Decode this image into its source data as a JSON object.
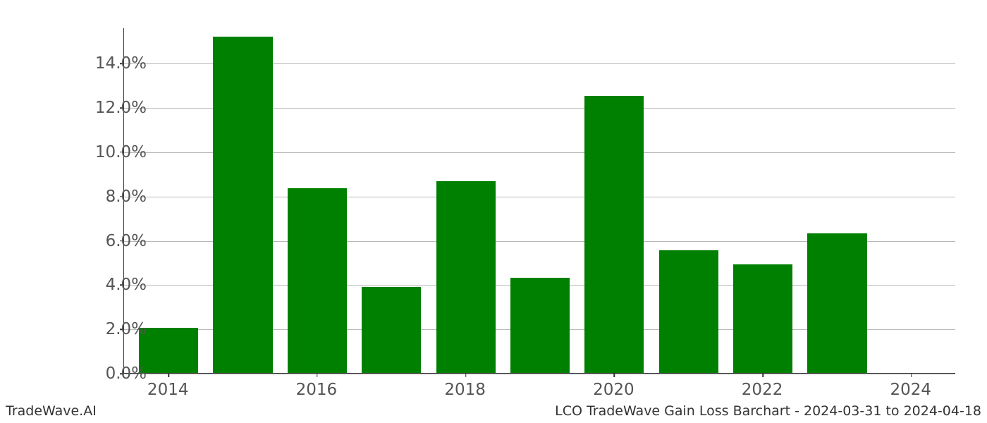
{
  "chart": {
    "type": "bar",
    "categories": [
      2014,
      2015,
      2016,
      2017,
      2018,
      2019,
      2020,
      2021,
      2022,
      2023,
      2024
    ],
    "values": [
      2.05,
      15.2,
      8.35,
      3.9,
      8.65,
      4.3,
      12.5,
      5.55,
      4.9,
      6.3,
      0.0
    ],
    "bar_color": "#008000",
    "ylim": [
      0,
      15.6
    ],
    "ytick_step": 2.0,
    "ytick_start": 0.0,
    "ytick_end": 14.0,
    "ytick_labels": [
      "0.0%",
      "2.0%",
      "4.0%",
      "6.0%",
      "8.0%",
      "10.0%",
      "12.0%",
      "14.0%"
    ],
    "xtick_positions": [
      2014,
      2016,
      2018,
      2020,
      2022,
      2024
    ],
    "xtick_labels": [
      "2014",
      "2016",
      "2018",
      "2020",
      "2022",
      "2024"
    ],
    "bar_width": 0.8,
    "grid_color": "#b8b8b8",
    "axis_color": "#333333",
    "background_color": "#ffffff",
    "tick_label_color": "#555555",
    "tick_label_fontsize": 23,
    "footer_fontsize": 19,
    "footer_color": "#333333"
  },
  "footer": {
    "left": "TradeWave.AI",
    "right": "LCO TradeWave Gain Loss Barchart - 2024-03-31 to 2024-04-18"
  }
}
